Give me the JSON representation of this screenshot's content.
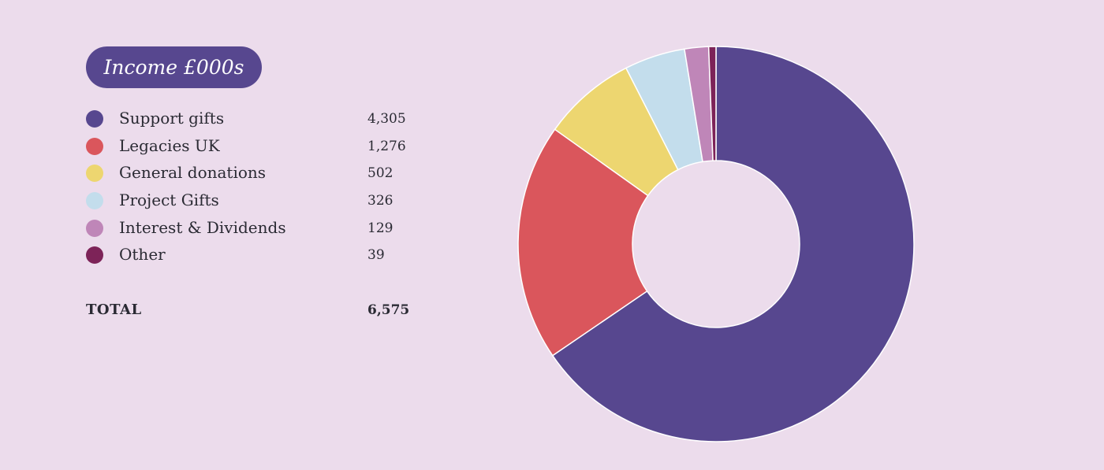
{
  "chart_data": {
    "type": "pie",
    "title": "Income £000s",
    "slices": [
      {
        "label": "Support gifts",
        "value": 4305,
        "display": "4,305",
        "color": "#57478f"
      },
      {
        "label": "Legacies UK",
        "value": 1276,
        "display": "1,276",
        "color": "#da565c"
      },
      {
        "label": "General donations",
        "value": 502,
        "display": "502",
        "color": "#edd670"
      },
      {
        "label": "Project Gifts",
        "value": 326,
        "display": "326",
        "color": "#c3ddec"
      },
      {
        "label": "Interest & Dividends",
        "value": 129,
        "display": "129",
        "color": "#bf86b8"
      },
      {
        "label": "Other",
        "value": 39,
        "display": "39",
        "color": "#7d2358"
      }
    ],
    "total_label": "TOTAL",
    "total_display": "6,575",
    "legend_position": "left"
  }
}
